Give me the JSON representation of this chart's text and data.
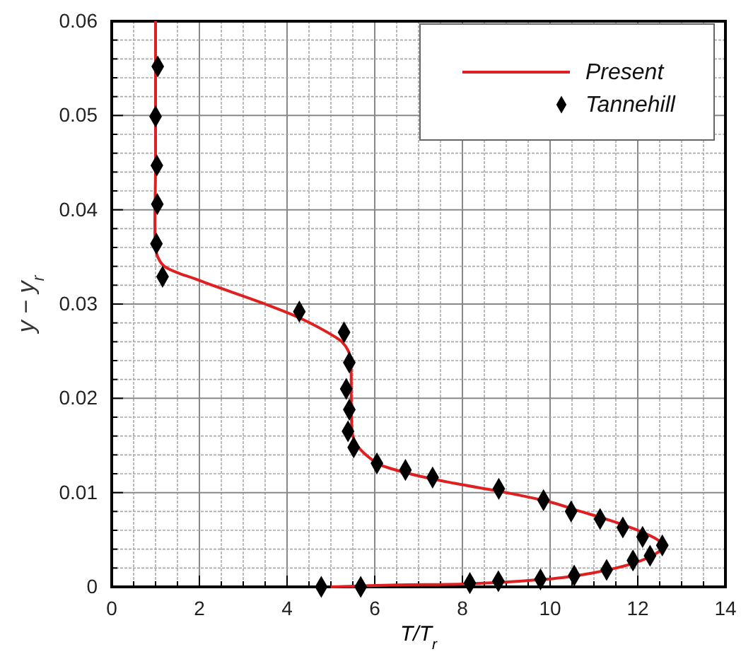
{
  "chart_data": {
    "type": "line",
    "xlabel": "T/T$_{r}$",
    "ylabel": "y − y$_{r}$",
    "xlim": [
      0,
      14
    ],
    "ylim": [
      0,
      0.06
    ],
    "xticks": [
      0,
      {
        "value": 0.5,
        "label": null
      },
      {
        "value": 1,
        "label": null
      },
      {
        "value": 1.5,
        "label": null
      },
      2,
      {
        "value": 2.5,
        "label": null
      },
      {
        "value": 3,
        "label": null
      },
      {
        "value": 3.5,
        "label": null
      },
      4,
      {
        "value": 4.5,
        "label": null
      },
      {
        "value": 5,
        "label": null
      },
      {
        "value": 5.5,
        "label": null
      },
      6,
      {
        "value": 6.5,
        "label": null
      },
      {
        "value": 7,
        "label": null
      },
      {
        "value": 7.5,
        "label": null
      },
      8,
      {
        "value": 8.5,
        "label": null
      },
      {
        "value": 9,
        "label": null
      },
      {
        "value": 9.5,
        "label": null
      },
      10,
      {
        "value": 10.5,
        "label": null
      },
      {
        "value": 11,
        "label": null
      },
      {
        "value": 11.5,
        "label": null
      },
      12,
      {
        "value": 12.5,
        "label": null
      },
      {
        "value": 13,
        "label": null
      },
      {
        "value": 13.5,
        "label": null
      },
      14
    ],
    "yticks": [
      0,
      {
        "value": 0.002,
        "label": null
      },
      {
        "value": 0.004,
        "label": null
      },
      {
        "value": 0.006,
        "label": null
      },
      {
        "value": 0.008,
        "label": null
      },
      0.01,
      {
        "value": 0.012,
        "label": null
      },
      {
        "value": 0.014,
        "label": null
      },
      {
        "value": 0.016,
        "label": null
      },
      {
        "value": 0.018,
        "label": null
      },
      0.02,
      {
        "value": 0.022,
        "label": null
      },
      {
        "value": 0.024,
        "label": null
      },
      {
        "value": 0.026,
        "label": null
      },
      {
        "value": 0.028,
        "label": null
      },
      0.03,
      {
        "value": 0.032,
        "label": null
      },
      {
        "value": 0.034,
        "label": null
      },
      {
        "value": 0.036,
        "label": null
      },
      {
        "value": 0.038,
        "label": null
      },
      0.04,
      {
        "value": 0.042,
        "label": null
      },
      {
        "value": 0.044,
        "label": null
      },
      {
        "value": 0.046,
        "label": null
      },
      {
        "value": 0.048,
        "label": null
      },
      0.05,
      {
        "value": 0.052,
        "label": null
      },
      {
        "value": 0.054,
        "label": null
      },
      {
        "value": 0.056,
        "label": null
      },
      {
        "value": 0.058,
        "label": null
      },
      0.06
    ],
    "grid": true,
    "legend": "top right",
    "series": [
      {
        "name": "Present",
        "color": "#e02020",
        "marker": "none",
        "line_style": "solid",
        "x": [
          1.0,
          1.0,
          1.0,
          1.05,
          1.2,
          2.0,
          3.5,
          4.3,
          5.1,
          5.25,
          5.4,
          5.45,
          5.5,
          5.6,
          5.8,
          6.1,
          6.8,
          7.8,
          9.0,
          10.0,
          10.7,
          11.4,
          12.0,
          12.45,
          12.6,
          12.4,
          11.9,
          11.0,
          10.3,
          9.3,
          8.0,
          6.5,
          5.0
        ],
        "values": [
          0.06,
          0.045,
          0.036,
          0.035,
          0.034,
          0.0325,
          0.03,
          0.0285,
          0.0265,
          0.026,
          0.025,
          0.024,
          0.016,
          0.015,
          0.014,
          0.013,
          0.012,
          0.011,
          0.01,
          0.009,
          0.008,
          0.007,
          0.006,
          0.005,
          0.0043,
          0.0035,
          0.0025,
          0.0015,
          0.001,
          0.0006,
          0.0003,
          0.0002,
          0
        ]
      },
      {
        "name": "Tannehill",
        "type": "scatter",
        "color": "#000000",
        "marker": "diamond",
        "x": [
          1.05,
          1.0,
          1.03,
          1.04,
          1.02,
          1.16,
          4.28,
          5.3,
          5.42,
          5.35,
          5.42,
          5.39,
          5.52,
          6.05,
          6.7,
          7.32,
          8.83,
          9.85,
          10.48,
          11.14,
          11.66,
          12.11,
          12.56,
          12.28,
          11.89,
          11.29,
          10.55,
          9.78,
          8.82,
          8.17,
          5.68,
          4.78
        ],
        "values": [
          0.0552,
          0.0499,
          0.0447,
          0.0406,
          0.0364,
          0.0329,
          0.0292,
          0.027,
          0.0238,
          0.021,
          0.0188,
          0.0165,
          0.0148,
          0.0131,
          0.0124,
          0.0116,
          0.0104,
          0.0092,
          0.008,
          0.0072,
          0.0063,
          0.0053,
          0.0044,
          0.0033,
          0.0028,
          0.0018,
          0.0012,
          0.0008,
          0.0006,
          0.0004,
          0,
          0
        ]
      }
    ]
  }
}
